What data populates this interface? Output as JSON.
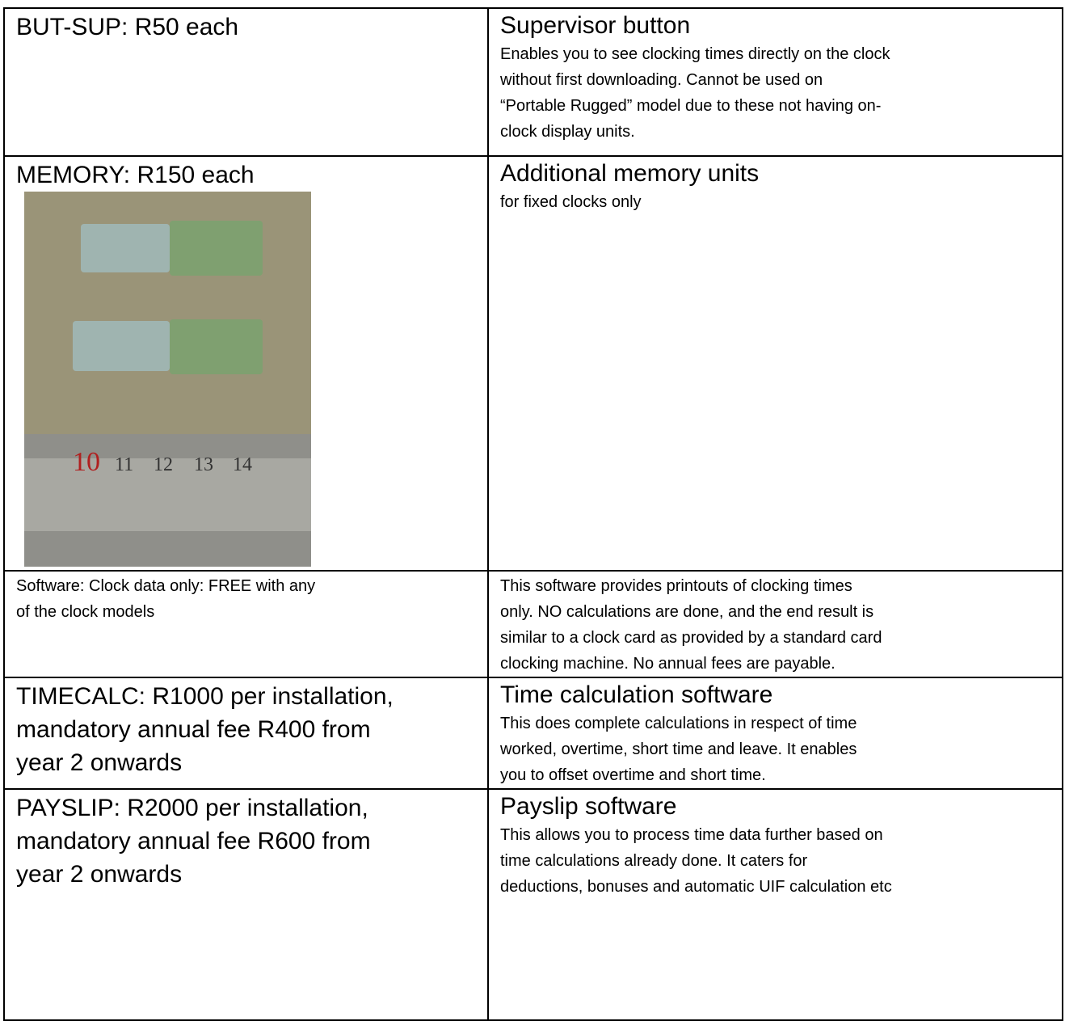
{
  "table": {
    "rows": [
      {
        "item": [
          "BUT-SUP: R50 each"
        ],
        "title": "Supervisor button",
        "description": [
          "Enables you to see clocking times directly on the clock",
          "without first downloading. Cannot be used on",
          "“Portable Rugged” model due to these not having on-",
          "clock display units."
        ]
      },
      {
        "item": [
          "MEMORY: R150 each"
        ],
        "title": "Additional memory units",
        "description": [
          "for fixed clocks only"
        ],
        "photo": {
          "ruler_labels": [
            "10",
            "11",
            "12",
            "13",
            "14"
          ]
        }
      },
      {
        "item": [
          "Software: Clock data only: FREE with any",
          "of the clock models"
        ],
        "description": [
          "This software provides printouts of clocking times",
          "only. NO calculations are done, and the end result is",
          "similar to a clock card as provided by a standard card",
          "clocking machine. No annual fees are payable."
        ]
      },
      {
        "item": [
          "TIMECALC: R1000 per installation,",
          "mandatory annual fee R400 from",
          "year 2 onwards"
        ],
        "title": "Time calculation software",
        "description": [
          "This does complete calculations in respect of time",
          "worked, overtime, short time and leave. It enables",
          "you to offset overtime and short time."
        ]
      },
      {
        "item": [
          "PAYSLIP: R2000 per installation,",
          "mandatory annual fee R600 from",
          "year 2 onwards"
        ],
        "title": "Payslip software",
        "description": [
          "This allows you to process time data further based on",
          "time calculations already done. It caters for",
          "deductions, bonuses and automatic UIF calculation etc"
        ]
      }
    ]
  }
}
